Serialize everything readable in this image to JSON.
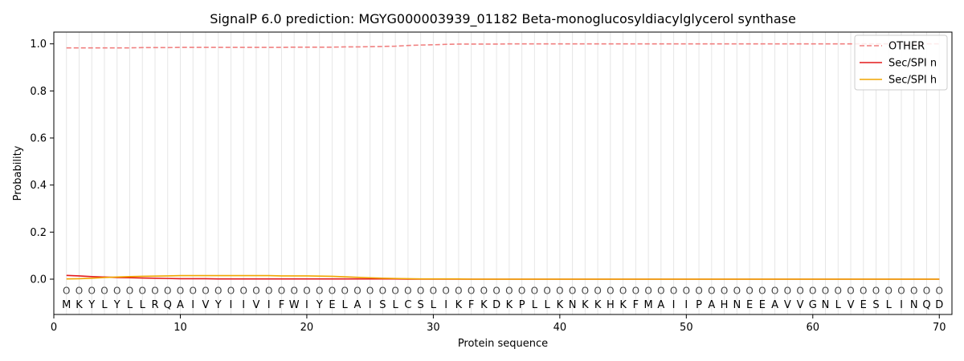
{
  "chart_data": {
    "type": "line",
    "title": "SignalP 6.0 prediction: MGYG000003939_01182 Beta-monoglucosyldiacylglycerol synthase",
    "xlabel": "Protein sequence",
    "ylabel": "Probability",
    "xlim": [
      0,
      71
    ],
    "ylim": [
      -0.15,
      1.05
    ],
    "xticks": [
      0,
      10,
      20,
      30,
      40,
      50,
      60,
      70
    ],
    "yticks": [
      0.0,
      0.2,
      0.4,
      0.6,
      0.8,
      1.0
    ],
    "ytick_labels": [
      "0.0",
      "0.2",
      "0.4",
      "0.6",
      "0.8",
      "1.0"
    ],
    "grid": "vertical lines at each residue",
    "legend_position": "top-right",
    "sequence": [
      "M",
      "K",
      "Y",
      "L",
      "Y",
      "L",
      "L",
      "R",
      "Q",
      "A",
      "I",
      "V",
      "Y",
      "I",
      "I",
      "V",
      "I",
      "F",
      "W",
      "I",
      "Y",
      "E",
      "L",
      "A",
      "I",
      "S",
      "L",
      "C",
      "S",
      "L",
      "I",
      "K",
      "F",
      "K",
      "D",
      "K",
      "P",
      "L",
      "L",
      "K",
      "N",
      "K",
      "K",
      "H",
      "K",
      "F",
      "M",
      "A",
      "I",
      "I",
      "P",
      "A",
      "H",
      "N",
      "E",
      "E",
      "A",
      "V",
      "V",
      "G",
      "N",
      "L",
      "V",
      "E",
      "S",
      "L",
      "I",
      "N",
      "Q",
      "D"
    ],
    "prediction_symbol": "O",
    "series": [
      {
        "name": "OTHER",
        "color": "#f08080",
        "style": "dashed",
        "values": [
          0.983,
          0.983,
          0.983,
          0.983,
          0.983,
          0.983,
          0.984,
          0.984,
          0.984,
          0.985,
          0.985,
          0.985,
          0.985,
          0.985,
          0.985,
          0.985,
          0.985,
          0.985,
          0.986,
          0.986,
          0.986,
          0.986,
          0.987,
          0.987,
          0.988,
          0.989,
          0.99,
          0.993,
          0.995,
          0.996,
          0.998,
          0.999,
          0.999,
          0.999,
          0.999,
          1.0,
          1.0,
          1.0,
          1.0,
          1.0,
          1.0,
          1.0,
          1.0,
          1.0,
          1.0,
          1.0,
          1.0,
          1.0,
          1.0,
          1.0,
          1.0,
          1.0,
          1.0,
          1.0,
          1.0,
          1.0,
          1.0,
          1.0,
          1.0,
          1.0,
          1.0,
          1.0,
          1.0,
          1.0,
          1.0,
          1.0,
          1.0,
          1.0,
          1.0,
          1.0
        ]
      },
      {
        "name": "Sec/SPI n",
        "color": "#e31a1c",
        "style": "solid",
        "values": [
          0.016,
          0.014,
          0.011,
          0.009,
          0.007,
          0.006,
          0.005,
          0.004,
          0.003,
          0.002,
          0.002,
          0.002,
          0.001,
          0.001,
          0.001,
          0.001,
          0.001,
          0.001,
          0.001,
          0.001,
          0.001,
          0.001,
          0.001,
          0.001,
          0.001,
          0.001,
          0.001,
          0.0,
          0.0,
          0.0,
          0.0,
          0.0,
          0.0,
          0.0,
          0.0,
          0.0,
          0.0,
          0.0,
          0.0,
          0.0,
          0.0,
          0.0,
          0.0,
          0.0,
          0.0,
          0.0,
          0.0,
          0.0,
          0.0,
          0.0,
          0.0,
          0.0,
          0.0,
          0.0,
          0.0,
          0.0,
          0.0,
          0.0,
          0.0,
          0.0,
          0.0,
          0.0,
          0.0,
          0.0,
          0.0,
          0.0,
          0.0,
          0.0,
          0.0,
          0.0
        ]
      },
      {
        "name": "Sec/SPI h",
        "color": "#f0a500",
        "style": "solid",
        "values": [
          0.001,
          0.002,
          0.004,
          0.007,
          0.009,
          0.011,
          0.012,
          0.013,
          0.014,
          0.015,
          0.015,
          0.015,
          0.015,
          0.015,
          0.015,
          0.015,
          0.015,
          0.014,
          0.014,
          0.014,
          0.013,
          0.012,
          0.01,
          0.008,
          0.006,
          0.004,
          0.003,
          0.002,
          0.001,
          0.001,
          0.001,
          0.001,
          0.0,
          0.0,
          0.0,
          0.0,
          0.0,
          0.0,
          0.0,
          0.0,
          0.0,
          0.0,
          0.0,
          0.0,
          0.0,
          0.0,
          0.0,
          0.0,
          0.0,
          0.0,
          0.0,
          0.0,
          0.0,
          0.0,
          0.0,
          0.0,
          0.0,
          0.0,
          0.0,
          0.0,
          0.0,
          0.0,
          0.0,
          0.0,
          0.0,
          0.0,
          0.0,
          0.0,
          0.0,
          0.0
        ]
      }
    ]
  }
}
